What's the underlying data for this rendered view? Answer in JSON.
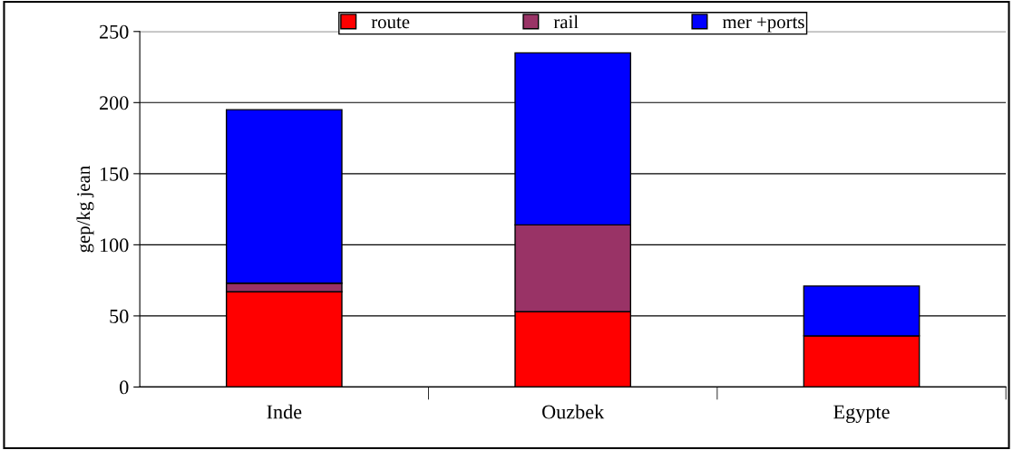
{
  "chart_data": {
    "type": "bar",
    "stacked": true,
    "ylabel": "gep/kg jean",
    "categories": [
      "Inde",
      "Ouzbek",
      "Egypte"
    ],
    "series": [
      {
        "name": "route",
        "color": "#ff0000",
        "values": [
          67,
          53,
          36
        ]
      },
      {
        "name": "rail",
        "color": "#993366",
        "values": [
          6,
          61,
          0
        ]
      },
      {
        "name": "mer +ports",
        "color": "#0000ff",
        "values": [
          122,
          121,
          35
        ]
      }
    ],
    "ylim": [
      0,
      250
    ],
    "yticks": [
      0,
      50,
      100,
      150,
      200,
      250
    ],
    "grid": "y",
    "legend": "top"
  }
}
